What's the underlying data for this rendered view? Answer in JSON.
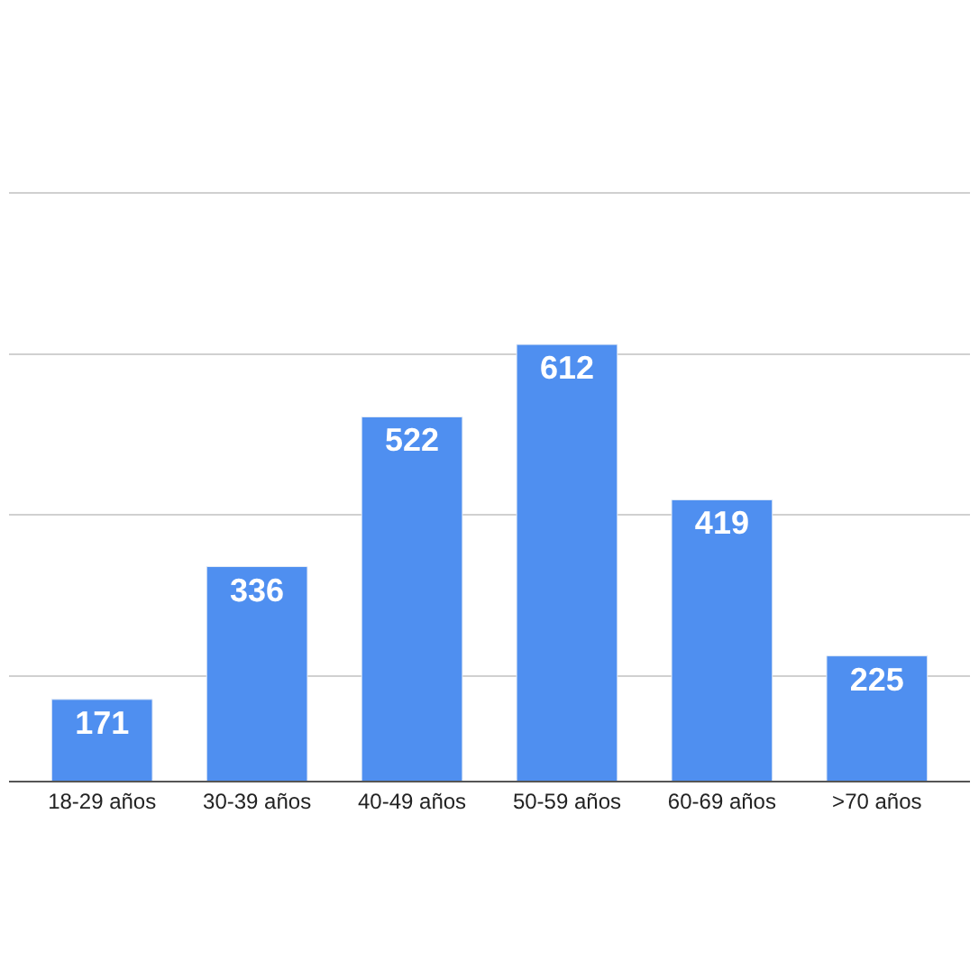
{
  "chart_data": {
    "type": "bar",
    "categories": [
      "18-29 años",
      "30-39 años",
      "40-49 años",
      "50-59 años",
      "60-69 años",
      ">70 años"
    ],
    "values": [
      171,
      336,
      522,
      612,
      419,
      225
    ],
    "color": "#4f8ff0",
    "data_labels": true,
    "ylim": [
      70,
      1040
    ],
    "yticks": [
      {
        "value": 200,
        "label": null
      },
      {
        "value": 400,
        "label": null
      },
      {
        "value": 600,
        "label": null
      },
      {
        "value": 800,
        "label": null
      }
    ],
    "tick_labels": "x",
    "grid": "y"
  }
}
